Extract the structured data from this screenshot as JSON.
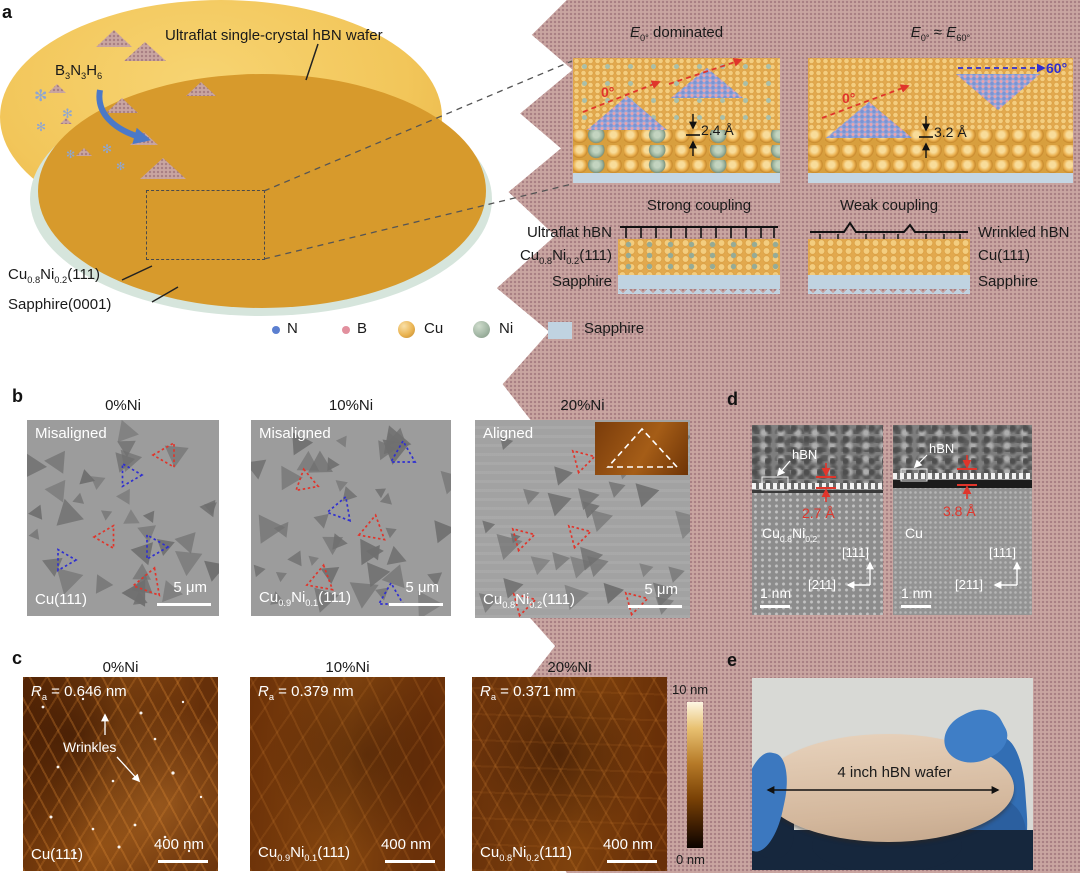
{
  "colors": {
    "copper_gold": "#f2c65a",
    "hbn_film": "#c9a5a1",
    "sapphire_schematic": "#c0d3e1",
    "aligned_marker_red": "#e0352b",
    "misaligned_marker_blue": "#2f2fd0",
    "afm_scale_top_color": "#fdf6e3",
    "afm_scale_bottom_color": "#0a0300"
  },
  "panel_a": {
    "label": "a",
    "wafer_title": "Ultraflat single-crystal hBN wafer",
    "precursor_formula": "B|3|N|3|H|6",
    "wafer_layer_label": "Cu|0.8|Ni|0.2|(111)",
    "wafer_substrate_label": "Sapphire(0001)",
    "inset_strong": {
      "title_symbol": "E",
      "title_sub": "0°",
      "title_rest": " dominated",
      "angle_label": "0°",
      "gap_label": "2.4 Å"
    },
    "inset_weak": {
      "symbol1": "E",
      "sub1": "0°",
      "approx": " ≈ ",
      "symbol2": "E",
      "sub2": "60°",
      "angle_label_red": "0°",
      "angle_label_blue": "60°",
      "gap_label": "3.2 Å"
    },
    "coupling_strong": {
      "title": "Strong coupling",
      "top_label": "Ultraflat hBN",
      "metal_label": "Cu|0.8|Ni|0.2|(111)",
      "substrate_label": "Sapphire"
    },
    "coupling_weak": {
      "title": "Weak coupling",
      "top_label": "Wrinkled hBN",
      "metal_label": "Cu(111)",
      "substrate_label": "Sapphire"
    },
    "legend": {
      "n": "N",
      "b": "B",
      "cu": "Cu",
      "ni": "Ni",
      "sapphire": "Sapphire"
    }
  },
  "panel_b": {
    "label": "b",
    "images": [
      {
        "title": "0%Ni",
        "alignment": "Misaligned",
        "surface": "Cu(111)",
        "scalebar": "5 μm"
      },
      {
        "title": "10%Ni",
        "alignment": "Misaligned",
        "surface": "Cu|0.9|Ni|0.1|(111)",
        "scalebar": "5 μm"
      },
      {
        "title": "20%Ni",
        "alignment": "Aligned",
        "surface": "Cu|0.8|Ni|0.2|(111)",
        "scalebar": "5 μm"
      }
    ]
  },
  "panel_c": {
    "label": "c",
    "images": [
      {
        "title": "0%Ni",
        "roughness_symbol": "R",
        "roughness_sub": "a",
        "roughness_value": " = 0.646 nm",
        "surface": "Cu(111)",
        "scalebar": "400 nm",
        "annotation": "Wrinkles"
      },
      {
        "title": "10%Ni",
        "roughness_symbol": "R",
        "roughness_sub": "a",
        "roughness_value": " = 0.379 nm",
        "surface": "Cu|0.9|Ni|0.1|(111)",
        "scalebar": "400 nm"
      },
      {
        "title": "20%Ni",
        "roughness_symbol": "R",
        "roughness_sub": "a",
        "roughness_value": " = 0.371 nm",
        "surface": "Cu|0.8|Ni|0.2|(111)",
        "scalebar": "400 nm"
      }
    ],
    "colorbar": {
      "max": "10 nm",
      "min": "0 nm"
    }
  },
  "panel_d": {
    "label": "d",
    "images": [
      {
        "film": "hBN",
        "spacing": "2.7 Å",
        "substrate": "Cu|0.8|Ni|0.2",
        "axis_vertical": "[111]",
        "axis_horizontal": "[211]",
        "scalebar": "1 nm"
      },
      {
        "film": "hBN",
        "spacing": "3.8 Å",
        "substrate": "Cu",
        "axis_vertical": "[111]",
        "axis_horizontal": "[211]",
        "scalebar": "1 nm"
      }
    ]
  },
  "panel_e": {
    "label": "e",
    "caption": "4 inch hBN wafer"
  }
}
